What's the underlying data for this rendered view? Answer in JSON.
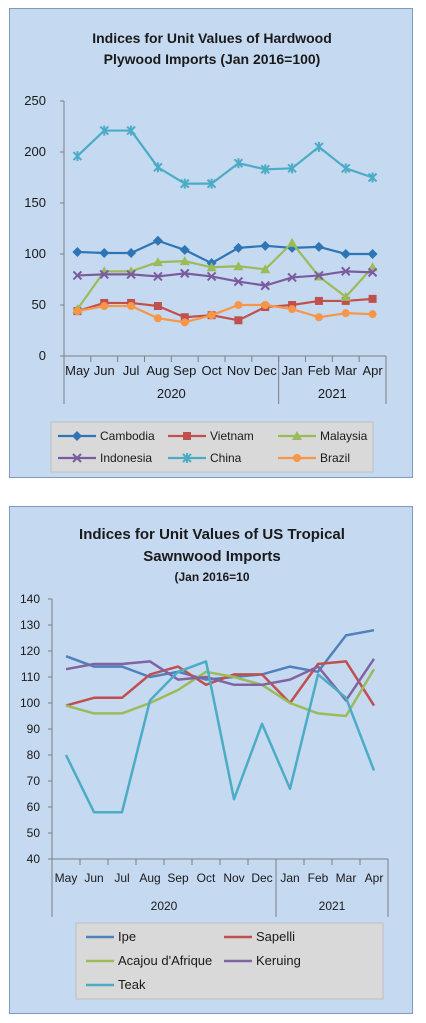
{
  "chart_data": [
    {
      "type": "line",
      "title_lines": [
        "Indices for Unit Values of Hardwood",
        "Plywood Imports (Jan 2016=100)"
      ],
      "categories": [
        "May",
        "Jun",
        "Jul",
        "Aug",
        "Sep",
        "Oct",
        "Nov",
        "Dec",
        "Jan",
        "Feb",
        "Mar",
        "Apr"
      ],
      "year_groups": [
        {
          "label": "2020",
          "count": 8
        },
        {
          "label": "2021",
          "count": 4
        }
      ],
      "ylim": [
        0,
        250
      ],
      "yticks": [
        "0",
        "50",
        "100",
        "150",
        "200",
        "250"
      ],
      "grid": false,
      "legend_position": "bottom",
      "series": [
        {
          "name": "Cambodia",
          "color": "#2e75b6",
          "marker": "diamond",
          "values": [
            102,
            101,
            101,
            113,
            104,
            91,
            106,
            108,
            106,
            107,
            100,
            100
          ]
        },
        {
          "name": "Vietnam",
          "color": "#c0504d",
          "marker": "square",
          "values": [
            44,
            52,
            52,
            49,
            38,
            40,
            35,
            48,
            50,
            54,
            54,
            56
          ]
        },
        {
          "name": "Malaysia",
          "color": "#9bbb59",
          "marker": "triangle",
          "values": [
            46,
            83,
            83,
            92,
            93,
            87,
            88,
            85,
            111,
            78,
            58,
            87
          ]
        },
        {
          "name": "Indonesia",
          "color": "#7a5c9e",
          "marker": "x",
          "values": [
            79,
            80,
            80,
            78,
            81,
            78,
            73,
            69,
            77,
            79,
            83,
            82
          ]
        },
        {
          "name": "China",
          "color": "#4bacc6",
          "marker": "star",
          "values": [
            196,
            221,
            221,
            185,
            169,
            169,
            189,
            183,
            184,
            205,
            184,
            175
          ]
        },
        {
          "name": "Brazil",
          "color": "#f79646",
          "marker": "circle",
          "values": [
            44,
            49,
            49,
            37,
            33,
            40,
            50,
            50,
            46,
            38,
            42,
            41
          ]
        }
      ]
    },
    {
      "type": "line",
      "title_lines": [
        "Indices for Unit Values of US Tropical",
        "Sawnwood Imports"
      ],
      "subtitle": "(Jan 2016=10",
      "categories": [
        "May",
        "Jun",
        "Jul",
        "Aug",
        "Sep",
        "Oct",
        "Nov",
        "Dec",
        "Jan",
        "Feb",
        "Mar",
        "Apr"
      ],
      "year_groups": [
        {
          "label": "2020",
          "count": 8
        },
        {
          "label": "2021",
          "count": 4
        }
      ],
      "ylim": [
        40,
        140
      ],
      "yticks": [
        "40",
        "50",
        "60",
        "70",
        "80",
        "90",
        "100",
        "110",
        "120",
        "130",
        "140"
      ],
      "grid": false,
      "legend_position": "bottom",
      "series": [
        {
          "name": "Ipe",
          "color": "#4f81bd",
          "values": [
            118,
            114,
            114,
            110,
            112,
            109,
            110,
            111,
            114,
            112,
            126,
            128
          ]
        },
        {
          "name": "Sapelli",
          "color": "#c0504d",
          "values": [
            99,
            102,
            102,
            111,
            114,
            107,
            111,
            111,
            100,
            115,
            116,
            99
          ]
        },
        {
          "name": "Acajou d'Afrique",
          "color": "#9bbb59",
          "values": [
            99,
            96,
            96,
            100,
            105,
            112,
            110,
            107,
            100,
            96,
            95,
            113
          ]
        },
        {
          "name": "Keruing",
          "color": "#8064a2",
          "values": [
            113,
            115,
            115,
            116,
            109,
            110,
            107,
            107,
            109,
            114,
            101,
            117
          ]
        },
        {
          "name": "Teak",
          "color": "#4bacc6",
          "values": [
            80,
            58,
            58,
            101,
            112,
            116,
            63,
            92,
            67,
            111,
            102,
            74
          ]
        }
      ]
    }
  ]
}
